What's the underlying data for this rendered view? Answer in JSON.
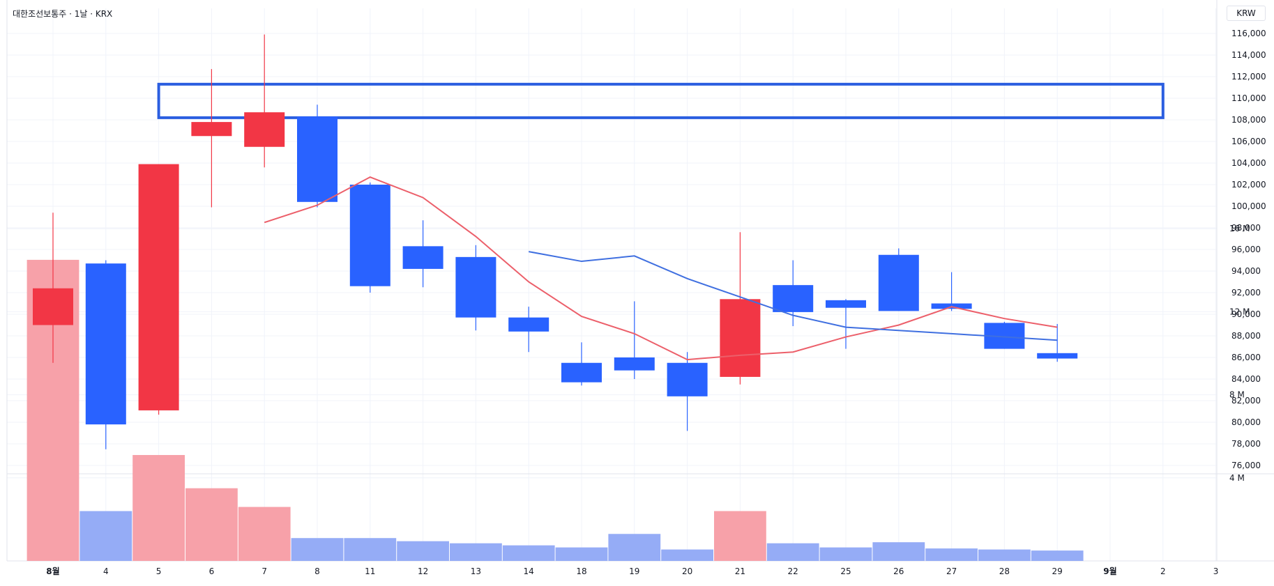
{
  "header": {
    "symbol_line": "대한조선보통주 · 1날 · KRX",
    "currency": "KRW"
  },
  "colors": {
    "up": "#f23645",
    "down": "#2962ff",
    "up_volume": "#f7a1a9",
    "down_volume": "#95acf6",
    "ma_short": "#ec5f6a",
    "ma_long": "#3f6fe0",
    "highlight_box": "#2b5ee0",
    "grid": "#f0f3fa",
    "axis_text": "#131722"
  },
  "chart_data": {
    "type": "candlestick",
    "ylim": [
      75000,
      117000
    ],
    "y_ticks": [
      76000,
      78000,
      80000,
      82000,
      84000,
      86000,
      88000,
      90000,
      92000,
      94000,
      96000,
      98000,
      100000,
      102000,
      104000,
      106000,
      108000,
      110000,
      112000,
      114000,
      116000
    ],
    "y_tick_labels": [
      "76,000",
      "78,000",
      "80,000",
      "82,000",
      "84,000",
      "86,000",
      "88,000",
      "90,000",
      "92,000",
      "94,000",
      "96,000",
      "98,000",
      "100,000",
      "102,000",
      "104,000",
      "106,000",
      "108,000",
      "110,000",
      "112,000",
      "114,000",
      "116,000"
    ],
    "x_tick_labels": [
      "8월",
      "4",
      "5",
      "6",
      "7",
      "8",
      "11",
      "12",
      "13",
      "14",
      "18",
      "19",
      "20",
      "21",
      "22",
      "25",
      "26",
      "27",
      "28",
      "29",
      "9월",
      "2",
      "3"
    ],
    "candles": [
      {
        "date": "8월",
        "open": 89000,
        "high": 99400,
        "low": 85500,
        "close": 92400
      },
      {
        "date": "4",
        "open": 94700,
        "high": 95000,
        "low": 77500,
        "close": 79800
      },
      {
        "date": "5",
        "open": 81100,
        "high": 103900,
        "low": 80700,
        "close": 103900
      },
      {
        "date": "6",
        "open": 106500,
        "high": 112700,
        "low": 99900,
        "close": 107800
      },
      {
        "date": "7",
        "open": 105500,
        "high": 115900,
        "low": 103600,
        "close": 108700
      },
      {
        "date": "8",
        "open": 108300,
        "high": 109400,
        "low": 99900,
        "close": 100400
      },
      {
        "date": "11",
        "open": 102000,
        "high": 102200,
        "low": 92000,
        "close": 92600
      },
      {
        "date": "12",
        "open": 96300,
        "high": 98700,
        "low": 92500,
        "close": 94200
      },
      {
        "date": "13",
        "open": 95300,
        "high": 96400,
        "low": 88500,
        "close": 89700
      },
      {
        "date": "14",
        "open": 89700,
        "high": 90700,
        "low": 86500,
        "close": 88400
      },
      {
        "date": "18",
        "open": 85500,
        "high": 87400,
        "low": 83400,
        "close": 83700
      },
      {
        "date": "19",
        "open": 86000,
        "high": 91200,
        "low": 84000,
        "close": 84800
      },
      {
        "date": "20",
        "open": 85500,
        "high": 86500,
        "low": 79200,
        "close": 82400
      },
      {
        "date": "21",
        "open": 84200,
        "high": 97600,
        "low": 83500,
        "close": 91400
      },
      {
        "date": "22",
        "open": 92700,
        "high": 95000,
        "low": 88900,
        "close": 90200
      },
      {
        "date": "25",
        "open": 91300,
        "high": 91400,
        "low": 86800,
        "close": 90600
      },
      {
        "date": "26",
        "open": 95500,
        "high": 96100,
        "low": 90300,
        "close": 90300
      },
      {
        "date": "27",
        "open": 91000,
        "high": 93900,
        "low": 90300,
        "close": 90500
      },
      {
        "date": "28",
        "open": 89200,
        "high": 89300,
        "low": 86800,
        "close": 86800
      },
      {
        "date": "29",
        "open": 86400,
        "high": 89100,
        "low": 85600,
        "close": 85900
      }
    ],
    "ma_short": [
      null,
      null,
      null,
      null,
      98500,
      100100,
      102700,
      100800,
      97200,
      93000,
      89800,
      88200,
      85800,
      86200,
      86500,
      87900,
      89000,
      90700,
      89600,
      88800
    ],
    "ma_long": [
      null,
      null,
      null,
      null,
      null,
      null,
      null,
      null,
      null,
      95800,
      94900,
      95400,
      93300,
      91600,
      89900,
      88800,
      88500,
      88200,
      87900,
      87600
    ],
    "highlight_zone": {
      "from_date": "5",
      "to_date": "2",
      "top": 111300,
      "bottom": 108200
    },
    "volume": {
      "ylim": [
        0,
        16000000
      ],
      "y_tick_labels": [
        "4 M",
        "8 M",
        "12 M",
        "16 M"
      ],
      "y_ticks": [
        4000000,
        8000000,
        12000000,
        16000000
      ],
      "values": [
        14500000,
        2400000,
        5100000,
        3500000,
        2600000,
        1100000,
        1100000,
        950000,
        850000,
        750000,
        650000,
        1300000,
        550000,
        2400000,
        850000,
        650000,
        900000,
        600000,
        550000,
        500000
      ]
    }
  }
}
